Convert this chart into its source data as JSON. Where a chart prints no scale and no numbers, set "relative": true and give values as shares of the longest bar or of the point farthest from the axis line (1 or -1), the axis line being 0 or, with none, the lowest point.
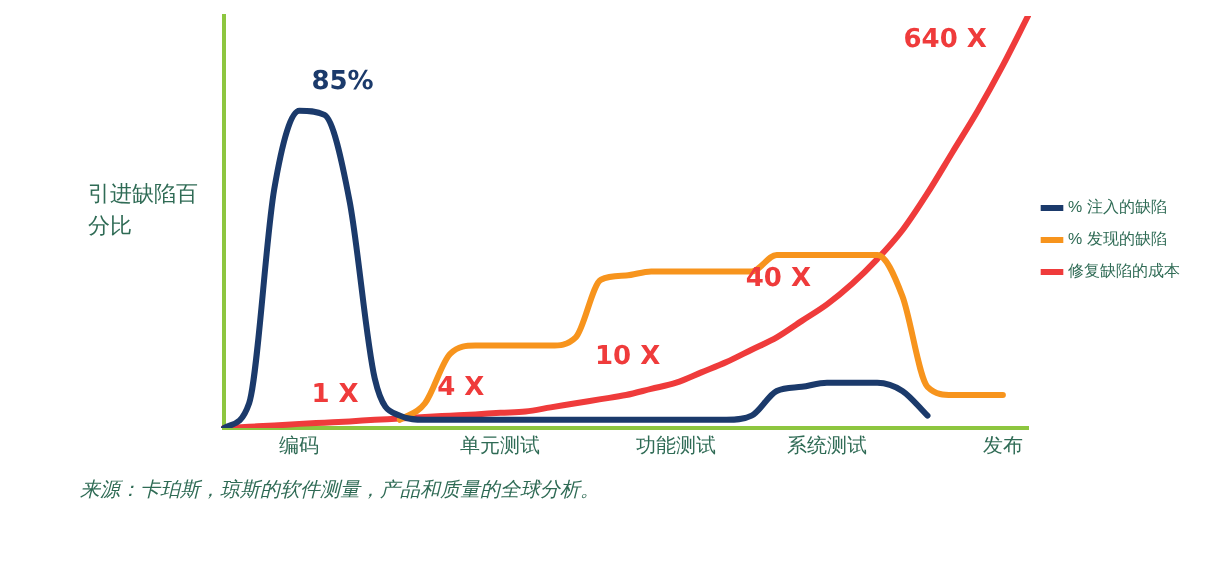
{
  "chart_data": {
    "type": "line",
    "relative": true,
    "ylabel": "引进缺陷百分比",
    "categories": [
      null,
      null,
      null,
      "编码",
      null,
      null,
      null,
      null,
      null,
      null,
      null,
      "单元测试",
      null,
      null,
      null,
      null,
      null,
      null,
      "功能测试",
      null,
      null,
      null,
      null,
      null,
      "系统测试",
      null,
      null,
      null,
      null,
      null,
      null,
      "发布",
      null
    ],
    "grid": false,
    "legend": "right",
    "series": [
      {
        "name": "% 注入的缺陷",
        "color": "#1b3a6b",
        "values": [
          0,
          0.06,
          0.58,
          0.77,
          0.76,
          0.55,
          0.12,
          0.03,
          0.02,
          0.02,
          0.02,
          0.02,
          0.02,
          0.02,
          0.02,
          0.02,
          0.02,
          0.02,
          0.02,
          0.02,
          0.02,
          0.03,
          0.09,
          0.1,
          0.11,
          0.11,
          0.11,
          0.09,
          0.03,
          null,
          null,
          null,
          null
        ]
      },
      {
        "name": "% 发现的缺陷",
        "color": "#f7941d",
        "values": [
          null,
          null,
          null,
          null,
          null,
          null,
          null,
          0.02,
          0.06,
          0.18,
          0.2,
          0.2,
          0.2,
          0.2,
          0.22,
          0.36,
          0.37,
          0.38,
          0.38,
          0.38,
          0.38,
          0.38,
          0.42,
          0.42,
          0.42,
          0.42,
          0.42,
          0.32,
          0.1,
          0.08,
          0.08,
          0.08,
          null
        ]
      },
      {
        "name": "修复缺陷的成本",
        "color": "#ef3b3b",
        "values": [
          0,
          0.003,
          0.006,
          0.01,
          0.013,
          0.016,
          0.02,
          0.023,
          0.027,
          0.03,
          0.033,
          0.037,
          0.04,
          0.05,
          0.06,
          0.07,
          0.08,
          0.095,
          0.11,
          0.135,
          0.16,
          0.19,
          0.22,
          0.26,
          0.3,
          0.35,
          0.41,
          0.48,
          0.57,
          0.67,
          0.77,
          0.88,
          1
        ]
      }
    ],
    "annotations": [
      {
        "text": "85%",
        "x": "编码",
        "y": 0.77
      },
      {
        "text": "1 X",
        "x": "编码",
        "y": 0.01
      },
      {
        "text": "4 X",
        "x": "单元测试",
        "y": 0.037
      },
      {
        "text": "10 X",
        "x": "功能测试",
        "y": 0.11
      },
      {
        "text": "40 X",
        "x": "系统测试",
        "y": 0.3
      },
      {
        "text": "640 X",
        "x": "发布",
        "y": 0.88
      },
      "来源：卡珀斯，琼斯的软件测量，产品和质量的全球分析。"
    ]
  }
}
